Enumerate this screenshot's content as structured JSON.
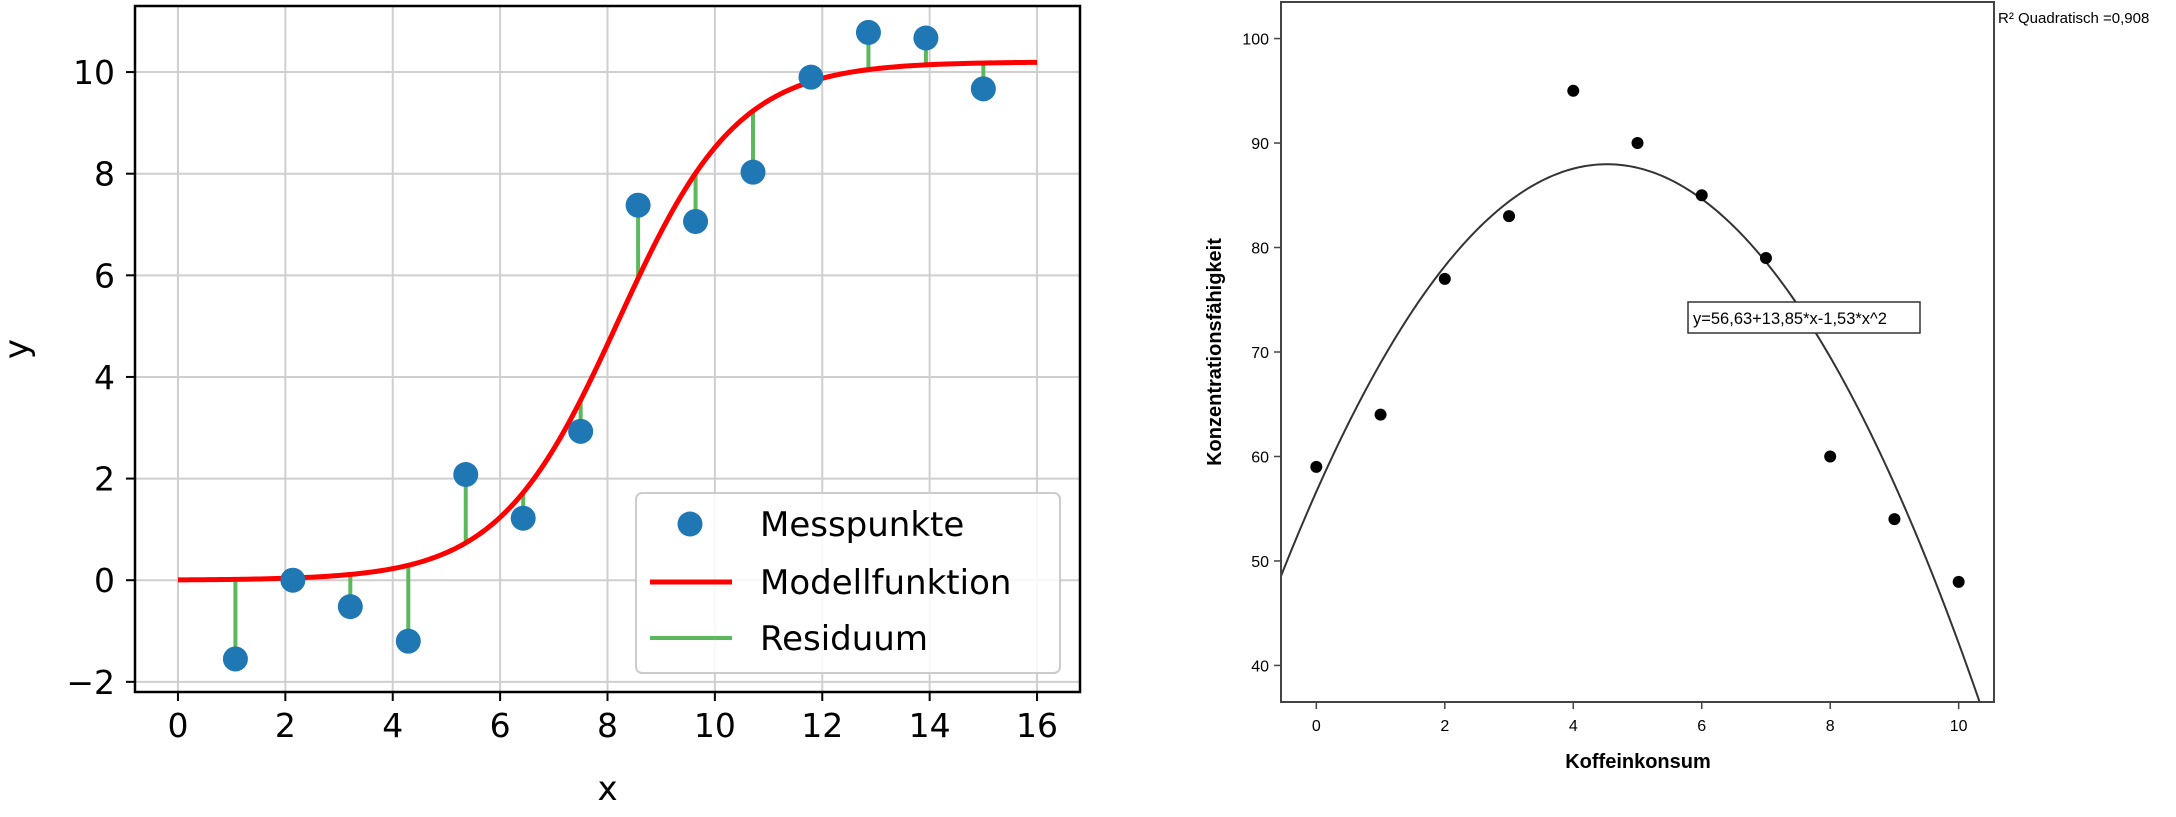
{
  "chart_data": [
    {
      "type": "scatter",
      "title": "",
      "xlabel": "x",
      "ylabel": "y",
      "xlim": [
        -0.8,
        16.8
      ],
      "ylim": [
        -2.2,
        11.3
      ],
      "xticks": [
        0,
        2,
        4,
        6,
        8,
        10,
        12,
        14,
        16
      ],
      "yticks": [
        -2,
        0,
        2,
        4,
        6,
        8,
        10
      ],
      "ytick_labels": [
        "−2",
        "0",
        "2",
        "4",
        "6",
        "8",
        "10"
      ],
      "grid": true,
      "legend_position": "lower-right",
      "colors": {
        "points": "#1f77b4",
        "model": "#ff0000",
        "residual": "#5cb85c"
      },
      "series": [
        {
          "name": "Messpunkte",
          "kind": "points",
          "x": [
            1.07,
            2.14,
            3.21,
            4.29,
            5.36,
            6.43,
            7.5,
            8.57,
            9.64,
            10.71,
            11.79,
            12.86,
            13.93,
            15.0
          ],
          "y": [
            -1.55,
            0.0,
            -0.52,
            -1.2,
            2.08,
            1.22,
            2.93,
            7.38,
            7.06,
            8.03,
            9.9,
            10.78,
            10.67,
            9.67
          ]
        },
        {
          "name": "Modellfunktion",
          "kind": "line",
          "model": {
            "L": 10.2,
            "k": 0.9,
            "x0": 8.2
          },
          "x_range": [
            0,
            16
          ]
        },
        {
          "name": "Residuum",
          "kind": "residual"
        }
      ],
      "legend": [
        "Messpunkte",
        "Modellfunktion",
        "Residuum"
      ]
    },
    {
      "type": "scatter",
      "title": "",
      "xlabel": "Koffeinkonsum",
      "ylabel": "Konzentrationsfähigkeit",
      "xlim": [
        -0.55,
        10.55
      ],
      "ylim": [
        36.5,
        103.5
      ],
      "xticks": [
        0,
        2,
        4,
        6,
        8,
        10
      ],
      "yticks": [
        40,
        50,
        60,
        70,
        80,
        90,
        100
      ],
      "grid": false,
      "r2_label": "R² Quadratisch =0,908",
      "fit_equation": "y=56,63+13,85*x-1,53*x^2",
      "fit_coefficients": [
        56.63,
        13.85,
        -1.53
      ],
      "x": [
        0,
        1,
        2,
        3,
        4,
        5,
        6,
        7,
        8,
        9,
        10
      ],
      "y": [
        59,
        64,
        77,
        83,
        95,
        90,
        85,
        79,
        60,
        54,
        48
      ],
      "colors": {
        "points": "#000000",
        "fit": "#333333"
      }
    }
  ]
}
